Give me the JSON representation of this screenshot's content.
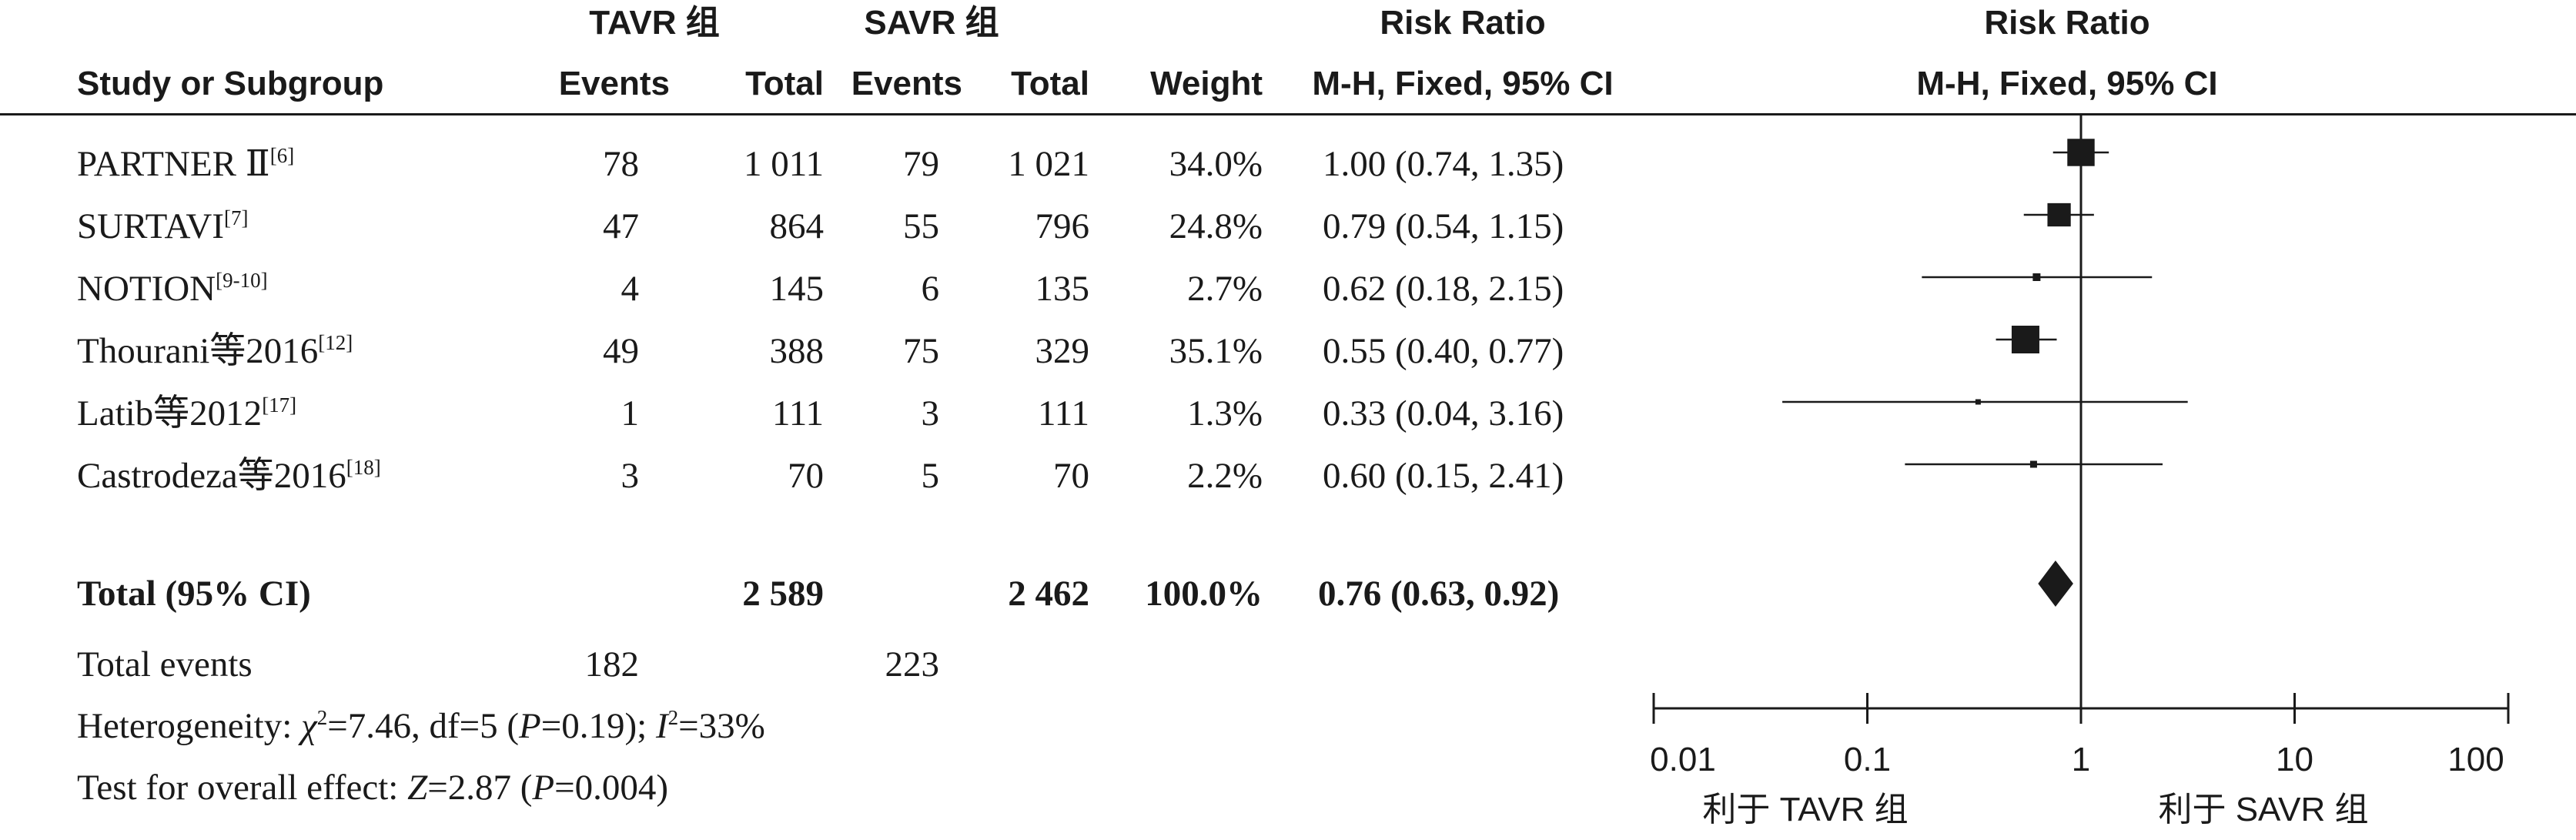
{
  "headers": {
    "tavr_group": "TAVR 组",
    "savr_group": "SAVR 组",
    "rr_title": "Risk Ratio",
    "rr_plot_title": "Risk Ratio",
    "study": "Study or Subgroup",
    "events1": "Events",
    "total1": "Total",
    "events2": "Events",
    "total2": "Total",
    "weight": "Weight",
    "method": "M-H, Fixed, 95% CI",
    "plot_method": "M-H, Fixed, 95% CI"
  },
  "studies": [
    {
      "name": "PARTNER Ⅱ",
      "ref": "[6]",
      "e1": "78",
      "t1": "1 011",
      "e2": "79",
      "t2": "1 021",
      "weight": "34.0%",
      "ci": "1.00 (0.74, 1.35)"
    },
    {
      "name": "SURTAVI",
      "ref": "[7]",
      "e1": "47",
      "t1": "864",
      "e2": "55",
      "t2": "796",
      "weight": "24.8%",
      "ci": "0.79 (0.54, 1.15)"
    },
    {
      "name": "NOTION",
      "ref": "[9-10]",
      "e1": "4",
      "t1": "145",
      "e2": "6",
      "t2": "135",
      "weight": "2.7%",
      "ci": "0.62 (0.18, 2.15)"
    },
    {
      "name": "Thourani等2016",
      "ref": "[12]",
      "e1": "49",
      "t1": "388",
      "e2": "75",
      "t2": "329",
      "weight": "35.1%",
      "ci": "0.55 (0.40, 0.77)"
    },
    {
      "name": "Latib等2012",
      "ref": "[17]",
      "e1": "1",
      "t1": "111",
      "e2": "3",
      "t2": "111",
      "weight": "1.3%",
      "ci": "0.33 (0.04, 3.16)"
    },
    {
      "name": "Castrodeza等2016",
      "ref": "[18]",
      "e1": "3",
      "t1": "70",
      "e2": "5",
      "t2": "70",
      "weight": "2.2%",
      "ci": "0.60 (0.15, 2.41)"
    }
  ],
  "total": {
    "label": "Total (95% CI)",
    "t1": "2 589",
    "t2": "2 462",
    "weight": "100.0%",
    "ci": "0.76 (0.63, 0.92)"
  },
  "total_events": {
    "label": "Total events",
    "e1": "182",
    "e2": "223"
  },
  "heterogeneity": {
    "prefix": "Heterogeneity: ",
    "chi": "χ",
    "chi_sup": "2",
    "chi_rest": "=7.46, df=5 (",
    "p": "P",
    "p_rest": "=0.19); ",
    "i": "I",
    "i_sup": "2",
    "i_rest": "=33%"
  },
  "overall": {
    "prefix": "Test for overall effect: ",
    "z": "Z",
    "z_rest": "=2.87 (",
    "p": "P",
    "p_rest": "=0.004)"
  },
  "axis": {
    "ticks": [
      "0.01",
      "0.1",
      "1",
      "10",
      "100"
    ],
    "favours_left": "利于 TAVR 组",
    "favours_right": "利于 SAVR 组"
  },
  "chart_data": {
    "type": "forest",
    "scale": "log",
    "xlim": [
      0.01,
      100
    ],
    "reference_line": 1,
    "series": [
      {
        "name": "PARTNER Ⅱ",
        "estimate": 1.0,
        "lower": 0.74,
        "upper": 1.35,
        "weight": 34.0
      },
      {
        "name": "SURTAVI",
        "estimate": 0.79,
        "lower": 0.54,
        "upper": 1.15,
        "weight": 24.8
      },
      {
        "name": "NOTION",
        "estimate": 0.62,
        "lower": 0.18,
        "upper": 2.15,
        "weight": 2.7
      },
      {
        "name": "Thourani等2016",
        "estimate": 0.55,
        "lower": 0.4,
        "upper": 0.77,
        "weight": 35.1
      },
      {
        "name": "Latib等2012",
        "estimate": 0.33,
        "lower": 0.04,
        "upper": 3.16,
        "weight": 1.3
      },
      {
        "name": "Castrodeza等2016",
        "estimate": 0.6,
        "lower": 0.15,
        "upper": 2.41,
        "weight": 2.2
      }
    ],
    "pooled": {
      "name": "Total (95% CI)",
      "estimate": 0.76,
      "lower": 0.63,
      "upper": 0.92
    },
    "tick_values": [
      0.01,
      0.1,
      1,
      10,
      100
    ]
  }
}
